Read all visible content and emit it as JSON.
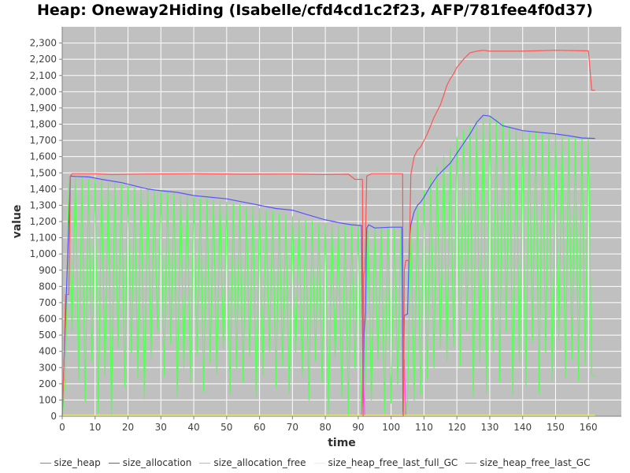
{
  "chart_data": {
    "type": "line",
    "title": "Heap: Oneway2Hiding (Isabelle/cfd4cd1c2f23, AFP/781fee4f0d37)",
    "xlabel": "time",
    "ylabel": "value",
    "xlim": [
      0,
      170
    ],
    "ylim": [
      0,
      2400
    ],
    "x_ticks": [
      "0",
      "10",
      "20",
      "30",
      "40",
      "50",
      "60",
      "70",
      "80",
      "90",
      "100",
      "110",
      "120",
      "130",
      "140",
      "150",
      "160"
    ],
    "y_ticks": [
      "0",
      "100",
      "200",
      "300",
      "400",
      "500",
      "600",
      "700",
      "800",
      "900",
      "1,000",
      "1,100",
      "1,200",
      "1,300",
      "1,400",
      "1,500",
      "1,600",
      "1,700",
      "1,800",
      "1,900",
      "2,000",
      "2,100",
      "2,200",
      "2,300"
    ],
    "grid": true,
    "legend_position": "bottom",
    "background": "#c0c0c0",
    "series": [
      {
        "name": "size_heap",
        "color": "#ff5555",
        "points": [
          [
            0,
            0
          ],
          [
            0.5,
            300
          ],
          [
            1,
            750
          ],
          [
            2,
            750
          ],
          [
            2.5,
            1480
          ],
          [
            3,
            1495
          ],
          [
            10,
            1495
          ],
          [
            15,
            1490
          ],
          [
            25,
            1493
          ],
          [
            40,
            1495
          ],
          [
            55,
            1492
          ],
          [
            70,
            1493
          ],
          [
            80,
            1490
          ],
          [
            87,
            1492
          ],
          [
            89,
            1460
          ],
          [
            91.3,
            1460
          ],
          [
            91.5,
            0
          ],
          [
            91.7,
            870
          ],
          [
            92,
            900
          ],
          [
            92.6,
            1480
          ],
          [
            94,
            1495
          ],
          [
            103.5,
            1495
          ],
          [
            103.7,
            0
          ],
          [
            104,
            900
          ],
          [
            104.5,
            960
          ],
          [
            105.5,
            960
          ],
          [
            106,
            1490
          ],
          [
            107,
            1600
          ],
          [
            108,
            1640
          ],
          [
            109,
            1660
          ],
          [
            110,
            1700
          ],
          [
            111,
            1740
          ],
          [
            112,
            1790
          ],
          [
            113,
            1840
          ],
          [
            114,
            1880
          ],
          [
            115,
            1920
          ],
          [
            116,
            1980
          ],
          [
            117,
            2040
          ],
          [
            118,
            2080
          ],
          [
            119,
            2110
          ],
          [
            120,
            2150
          ],
          [
            122,
            2200
          ],
          [
            124,
            2240
          ],
          [
            126,
            2250
          ],
          [
            128,
            2255
          ],
          [
            130,
            2250
          ],
          [
            140,
            2250
          ],
          [
            150,
            2255
          ],
          [
            160,
            2252
          ],
          [
            161,
            2010
          ],
          [
            162,
            2010
          ]
        ]
      },
      {
        "name": "size_allocation",
        "color": "#5555ff",
        "points": [
          [
            0,
            0
          ],
          [
            2.5,
            1480
          ],
          [
            4,
            1478
          ],
          [
            8,
            1475
          ],
          [
            12,
            1460
          ],
          [
            18,
            1440
          ],
          [
            22,
            1420
          ],
          [
            26,
            1400
          ],
          [
            30,
            1390
          ],
          [
            35,
            1380
          ],
          [
            40,
            1360
          ],
          [
            45,
            1350
          ],
          [
            50,
            1340
          ],
          [
            55,
            1320
          ],
          [
            60,
            1300
          ],
          [
            65,
            1280
          ],
          [
            70,
            1270
          ],
          [
            75,
            1240
          ],
          [
            80,
            1210
          ],
          [
            85,
            1190
          ],
          [
            88,
            1180
          ],
          [
            91,
            1175
          ],
          [
            91.5,
            80
          ],
          [
            91.8,
            520
          ],
          [
            92.2,
            640
          ],
          [
            92.6,
            1160
          ],
          [
            93.2,
            1180
          ],
          [
            95,
            1160
          ],
          [
            100,
            1165
          ],
          [
            103.3,
            1165
          ],
          [
            103.6,
            30
          ],
          [
            104,
            620
          ],
          [
            105,
            630
          ],
          [
            105.6,
            1100
          ],
          [
            106,
            1180
          ],
          [
            107,
            1260
          ],
          [
            108,
            1300
          ],
          [
            109,
            1320
          ],
          [
            110,
            1350
          ],
          [
            112,
            1420
          ],
          [
            114,
            1480
          ],
          [
            116,
            1520
          ],
          [
            118,
            1560
          ],
          [
            120,
            1620
          ],
          [
            122,
            1680
          ],
          [
            124,
            1740
          ],
          [
            126,
            1810
          ],
          [
            128,
            1855
          ],
          [
            130,
            1850
          ],
          [
            132,
            1820
          ],
          [
            134,
            1790
          ],
          [
            136,
            1780
          ],
          [
            140,
            1760
          ],
          [
            145,
            1750
          ],
          [
            150,
            1740
          ],
          [
            155,
            1725
          ],
          [
            158,
            1715
          ],
          [
            162,
            1712
          ]
        ]
      },
      {
        "name": "size_allocation_free",
        "color": "#55ff55",
        "points": [
          [
            0,
            0
          ],
          [
            1,
            220
          ],
          [
            2,
            1470
          ],
          [
            3,
            520
          ],
          [
            4,
            1480
          ],
          [
            5,
            220
          ],
          [
            6,
            1470
          ],
          [
            7,
            90
          ],
          [
            8,
            1460
          ],
          [
            9,
            340
          ],
          [
            10,
            1460
          ],
          [
            11,
            20
          ],
          [
            12,
            1450
          ],
          [
            13,
            250
          ],
          [
            14,
            1440
          ],
          [
            15,
            0
          ],
          [
            16,
            1440
          ],
          [
            17,
            420
          ],
          [
            18,
            1430
          ],
          [
            19,
            180
          ],
          [
            20,
            1420
          ],
          [
            21,
            390
          ],
          [
            22,
            1410
          ],
          [
            23,
            240
          ],
          [
            24,
            1400
          ],
          [
            25,
            110
          ],
          [
            26,
            1400
          ],
          [
            27,
            360
          ],
          [
            28,
            1390
          ],
          [
            29,
            520
          ],
          [
            30,
            1390
          ],
          [
            31,
            250
          ],
          [
            32,
            1380
          ],
          [
            33,
            440
          ],
          [
            34,
            1370
          ],
          [
            35,
            120
          ],
          [
            36,
            1360
          ],
          [
            37,
            300
          ],
          [
            38,
            1360
          ],
          [
            39,
            210
          ],
          [
            40,
            1350
          ],
          [
            41,
            380
          ],
          [
            42,
            1340
          ],
          [
            43,
            150
          ],
          [
            44,
            1340
          ],
          [
            45,
            330
          ],
          [
            46,
            1330
          ],
          [
            47,
            260
          ],
          [
            48,
            1330
          ],
          [
            49,
            420
          ],
          [
            50,
            1320
          ],
          [
            51,
            140
          ],
          [
            52,
            1310
          ],
          [
            53,
            300
          ],
          [
            54,
            1300
          ],
          [
            55,
            210
          ],
          [
            56,
            1290
          ],
          [
            57,
            370
          ],
          [
            58,
            1290
          ],
          [
            59,
            120
          ],
          [
            60,
            1280
          ],
          [
            61,
            250
          ],
          [
            62,
            1270
          ],
          [
            63,
            400
          ],
          [
            64,
            1260
          ],
          [
            65,
            180
          ],
          [
            66,
            1250
          ],
          [
            67,
            310
          ],
          [
            68,
            1240
          ],
          [
            69,
            140
          ],
          [
            70,
            1230
          ],
          [
            71,
            390
          ],
          [
            72,
            1220
          ],
          [
            73,
            250
          ],
          [
            74,
            1210
          ],
          [
            75,
            100
          ],
          [
            76,
            1200
          ],
          [
            77,
            340
          ],
          [
            78,
            1190
          ],
          [
            79,
            210
          ],
          [
            80,
            1190
          ],
          [
            81,
            0
          ],
          [
            82,
            1180
          ],
          [
            83,
            360
          ],
          [
            84,
            1180
          ],
          [
            85,
            120
          ],
          [
            86,
            1175
          ],
          [
            87,
            0
          ],
          [
            88,
            1175
          ],
          [
            89,
            300
          ],
          [
            90,
            1170
          ],
          [
            91,
            0
          ],
          [
            92,
            0
          ],
          [
            93,
            1180
          ],
          [
            94,
            100
          ],
          [
            95,
            1165
          ],
          [
            96,
            350
          ],
          [
            97,
            1165
          ],
          [
            98,
            20
          ],
          [
            99,
            1165
          ],
          [
            100,
            80
          ],
          [
            101,
            1165
          ],
          [
            102,
            200
          ],
          [
            103,
            1165
          ],
          [
            104,
            0
          ],
          [
            105,
            80
          ],
          [
            106,
            1180
          ],
          [
            107,
            100
          ],
          [
            108,
            1290
          ],
          [
            109,
            130
          ],
          [
            110,
            1390
          ],
          [
            111,
            230
          ],
          [
            112,
            1470
          ],
          [
            113,
            300
          ],
          [
            114,
            1540
          ],
          [
            115,
            420
          ],
          [
            116,
            1600
          ],
          [
            117,
            340
          ],
          [
            118,
            1660
          ],
          [
            119,
            430
          ],
          [
            120,
            1720
          ],
          [
            121,
            310
          ],
          [
            122,
            1760
          ],
          [
            123,
            530
          ],
          [
            124,
            1790
          ],
          [
            125,
            120
          ],
          [
            126,
            1820
          ],
          [
            127,
            330
          ],
          [
            128,
            1850
          ],
          [
            129,
            140
          ],
          [
            130,
            1850
          ],
          [
            131,
            400
          ],
          [
            132,
            1830
          ],
          [
            133,
            210
          ],
          [
            134,
            1810
          ],
          [
            135,
            520
          ],
          [
            136,
            1790
          ],
          [
            137,
            130
          ],
          [
            138,
            1770
          ],
          [
            139,
            330
          ],
          [
            140,
            1760
          ],
          [
            141,
            190
          ],
          [
            142,
            1760
          ],
          [
            143,
            460
          ],
          [
            144,
            1750
          ],
          [
            145,
            140
          ],
          [
            146,
            1750
          ],
          [
            147,
            390
          ],
          [
            148,
            1740
          ],
          [
            149,
            220
          ],
          [
            150,
            1740
          ],
          [
            151,
            470
          ],
          [
            152,
            1730
          ],
          [
            153,
            240
          ],
          [
            154,
            1720
          ],
          [
            155,
            350
          ],
          [
            156,
            1715
          ],
          [
            157,
            220
          ],
          [
            158,
            1710
          ],
          [
            159,
            320
          ],
          [
            160,
            1710
          ],
          [
            161,
            260
          ],
          [
            162,
            240
          ]
        ]
      },
      {
        "name": "size_heap_free_last_full_GC",
        "color": "#ffff55",
        "points": [
          [
            0,
            5
          ],
          [
            162,
            5
          ]
        ]
      },
      {
        "name": "size_heap_free_last_GC",
        "color": "#ff55ff",
        "points": [
          [
            91,
            0
          ],
          [
            91.5,
            300
          ],
          [
            92,
            0
          ],
          [
            103.5,
            0
          ],
          [
            104,
            350
          ],
          [
            104.5,
            0
          ]
        ]
      }
    ]
  }
}
